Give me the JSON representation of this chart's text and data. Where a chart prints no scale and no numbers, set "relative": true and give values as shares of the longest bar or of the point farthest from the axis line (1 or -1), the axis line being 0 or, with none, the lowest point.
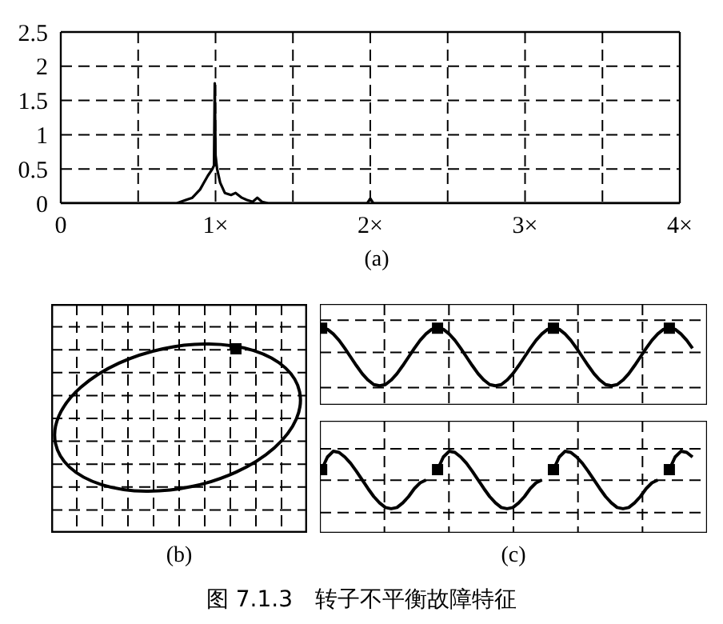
{
  "chart_data": [
    {
      "type": "line",
      "xlabel": "(a)",
      "grid": true,
      "marker": "none",
      "line_style": "solid",
      "x": [
        0,
        0.5,
        0.75,
        0.8,
        0.85,
        0.9,
        0.95,
        0.98,
        0.99,
        0.995,
        1.0,
        1.01,
        1.03,
        1.06,
        1.1,
        1.13,
        1.17,
        1.2,
        1.24,
        1.27,
        1.3,
        1.34,
        1.4,
        1.98,
        2.0,
        2.02,
        4
      ],
      "series": [
        {
          "color": "#000000",
          "values": [
            0,
            0,
            0,
            0.04,
            0.08,
            0.2,
            0.4,
            0.5,
            0.55,
            1.75,
            0.7,
            0.5,
            0.3,
            0.15,
            0.12,
            0.15,
            0.08,
            0.05,
            0.02,
            0.08,
            0.02,
            0,
            0,
            0,
            0.07,
            0,
            0
          ]
        }
      ],
      "xlim": [
        0,
        4
      ],
      "xticks": [
        0,
        {
          "value": 0.5,
          "label": null
        },
        {
          "value": 1,
          "label": "1×"
        },
        {
          "value": 1.5,
          "label": null
        },
        {
          "value": 2,
          "label": "2×"
        },
        {
          "value": 2.5,
          "label": null
        },
        {
          "value": 3,
          "label": "3×"
        },
        {
          "value": 3.5,
          "label": null
        },
        {
          "value": 4,
          "label": "4×"
        }
      ],
      "ylim": [
        0,
        2.5
      ],
      "yticks": [
        0,
        0.5,
        1,
        1.5,
        2,
        2.5
      ]
    },
    {
      "type": "other",
      "xlabel": "(b)"
    },
    {
      "type": "line",
      "relative": true,
      "grid": true,
      "marker": "none",
      "line_style": "solid",
      "categories": [
        null,
        null,
        null,
        null,
        null,
        null,
        null,
        null,
        null,
        null,
        null,
        null,
        null,
        null,
        null,
        null,
        null,
        null,
        null,
        null,
        null,
        null,
        null,
        null,
        null,
        null,
        null,
        null,
        null,
        null,
        null,
        null,
        null,
        null,
        null,
        null,
        null,
        null,
        null,
        null,
        null,
        null,
        null,
        null,
        null,
        null,
        null,
        null,
        null,
        null,
        null,
        null,
        null,
        null,
        null,
        null,
        null,
        null,
        null,
        null,
        null,
        null,
        null,
        null,
        null
      ],
      "series": [
        {
          "color": "#000000",
          "values": [
            1,
            0.98,
            0.9,
            0.79,
            0.65,
            0.5,
            0.35,
            0.21,
            0.1,
            0.02,
            0,
            0.02,
            0.1,
            0.21,
            0.35,
            0.5,
            0.65,
            0.79,
            0.9,
            0.98,
            1,
            0.98,
            0.9,
            0.79,
            0.65,
            0.5,
            0.35,
            0.21,
            0.1,
            0.02,
            0,
            0.02,
            0.1,
            0.21,
            0.35,
            0.5,
            0.65,
            0.79,
            0.9,
            0.98,
            1,
            0.98,
            0.9,
            0.79,
            0.65,
            0.5,
            0.35,
            0.21,
            0.1,
            0.02,
            0,
            0.02,
            0.1,
            0.21,
            0.35,
            0.5,
            0.65,
            0.79,
            0.9,
            0.98,
            1,
            0.98,
            0.9,
            0.79,
            0.65
          ]
        }
      ]
    },
    {
      "type": "line",
      "xlabel": "(c)",
      "relative": true,
      "grid": true,
      "marker": "none",
      "line_style": "solid",
      "categories": [
        null,
        null,
        null,
        null,
        null,
        null,
        null,
        null,
        null,
        null,
        null,
        null,
        null,
        null,
        null,
        null,
        null,
        null,
        null,
        null,
        null,
        null,
        null,
        null,
        null,
        null,
        null,
        null,
        null,
        null,
        null,
        null,
        null,
        null,
        null,
        null,
        null,
        null,
        null,
        null,
        null,
        null,
        null,
        null,
        null,
        null,
        null,
        null,
        null,
        null,
        null,
        null,
        null,
        null,
        null,
        null,
        null,
        null,
        null,
        null,
        null,
        null,
        null,
        null,
        null
      ],
      "series": [
        {
          "color": "#000000",
          "values": [
            0.68,
            0.9,
            1,
            0.98,
            0.9,
            0.79,
            0.65,
            0.5,
            0.35,
            0.21,
            0.1,
            0.02,
            0,
            0.02,
            0.1,
            0.21,
            0.35,
            0.45,
            0.5,
            null,
            0.68,
            0.9,
            1,
            0.98,
            0.9,
            0.79,
            0.65,
            0.5,
            0.35,
            0.21,
            0.1,
            0.02,
            0,
            0.02,
            0.1,
            0.21,
            0.35,
            0.45,
            0.5,
            null,
            0.68,
            0.9,
            1,
            0.98,
            0.9,
            0.79,
            0.65,
            0.5,
            0.35,
            0.21,
            0.1,
            0.02,
            0,
            0.02,
            0.1,
            0.21,
            0.35,
            0.45,
            0.5,
            null,
            0.68,
            0.9,
            1,
            0.98,
            0.9
          ]
        }
      ],
      "annotations": [
        "图 7.1.3　转子不平衡故障特征"
      ]
    }
  ]
}
